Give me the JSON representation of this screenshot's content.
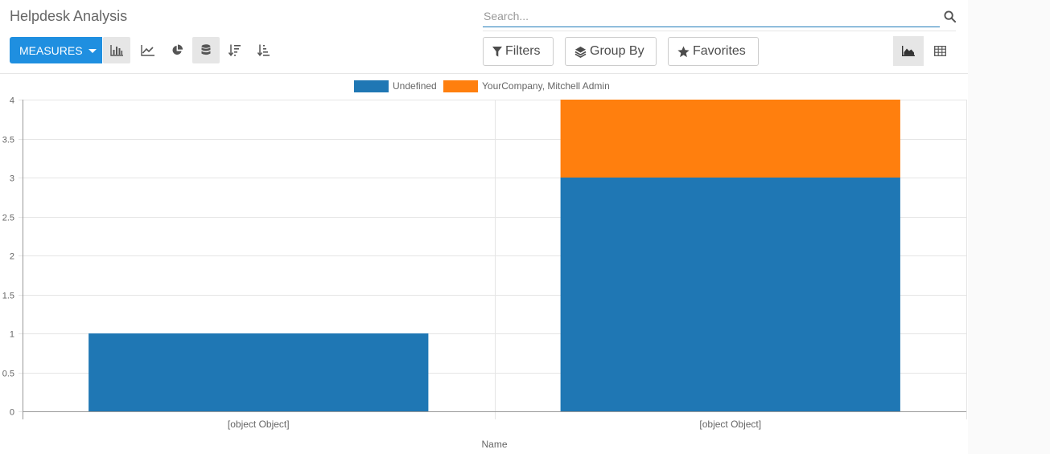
{
  "app": {
    "title": "Helpdesk Analysis"
  },
  "search": {
    "placeholder": "Search..."
  },
  "toolbar": {
    "measures_label": "MEASURES",
    "filters_label": "Filters",
    "groupby_label": "Group By",
    "favorites_label": "Favorites"
  },
  "colors": {
    "primary": "#1f8fe0",
    "series_undefined": "#1f77b4",
    "series_company": "#ff7f0e"
  },
  "chart_data": {
    "type": "bar",
    "stacked": true,
    "categories": [
      "[object Object]",
      "[object Object]"
    ],
    "series": [
      {
        "name": "Undefined",
        "color": "#1f77b4",
        "values": [
          1,
          3
        ]
      },
      {
        "name": "YourCompany, Mitchell Admin",
        "color": "#ff7f0e",
        "values": [
          0,
          1
        ]
      }
    ],
    "xlabel": "Name",
    "ylabel": "",
    "ylim": [
      0,
      4
    ],
    "yticks": [
      "0",
      "0.5",
      "1",
      "1.5",
      "2",
      "2.5",
      "3",
      "3.5",
      "4"
    ],
    "legend_position": "top-center"
  }
}
